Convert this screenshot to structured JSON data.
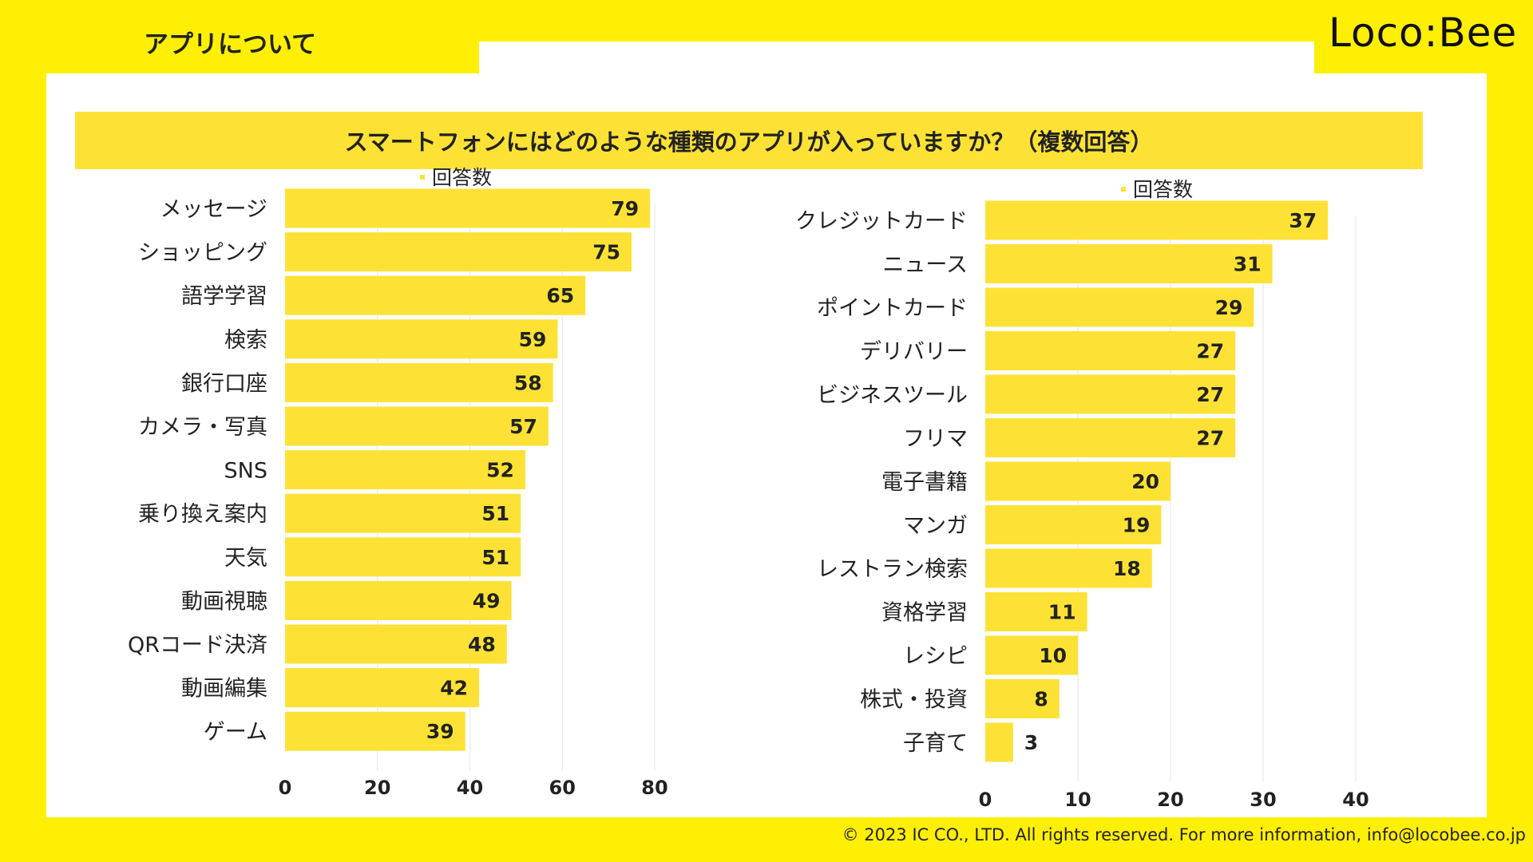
{
  "page": {
    "section_tab": "アプリについて",
    "logo": "Loco:Bee",
    "copyright": "© 2023 IC CO., LTD. All rights reserved. For more information, info@locobee.co.jp"
  },
  "colors": {
    "background": "#FEEF05",
    "bar": "#FDE235",
    "panel": "#FFFFFF",
    "text": "#222222"
  },
  "chart_data": [
    {
      "type": "bar",
      "orientation": "horizontal",
      "title": "スマートフォンにはどのような種類のアプリが入っていますか？（複数回答）",
      "legend": "回答数",
      "categories": [
        "メッセージ",
        "ショッピング",
        "語学学習",
        "検索",
        "銀行口座",
        "カメラ・写真",
        "SNS",
        "乗り換え案内",
        "天気",
        "動画視聴",
        "QRコード決済",
        "動画編集",
        "ゲーム"
      ],
      "values": [
        79,
        75,
        65,
        59,
        58,
        57,
        52,
        51,
        51,
        49,
        48,
        42,
        39
      ],
      "xlim": [
        0,
        80
      ],
      "ticks": [
        0,
        20,
        40,
        60,
        80
      ],
      "grid": true
    },
    {
      "type": "bar",
      "orientation": "horizontal",
      "legend": "回答数",
      "categories": [
        "クレジットカード",
        "ニュース",
        "ポイントカード",
        "デリバリー",
        "ビジネスツール",
        "フリマ",
        "電子書籍",
        "マンガ",
        "レストラン検索",
        "資格学習",
        "レシピ",
        "株式・投資",
        "子育て"
      ],
      "values": [
        37,
        31,
        29,
        27,
        27,
        27,
        20,
        19,
        18,
        11,
        10,
        8,
        3
      ],
      "xlim": [
        0,
        40
      ],
      "ticks": [
        0,
        10,
        20,
        30,
        40
      ],
      "grid": true
    }
  ]
}
